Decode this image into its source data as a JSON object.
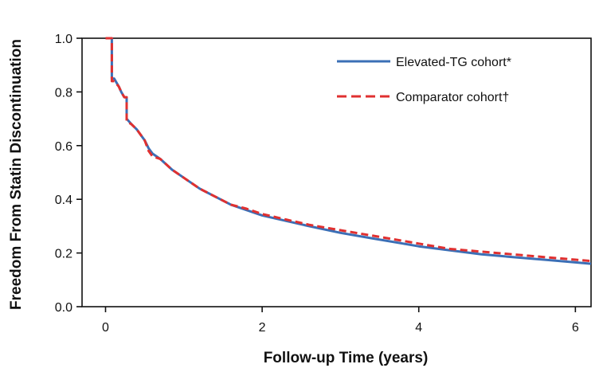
{
  "chart_data": {
    "type": "line",
    "title": "",
    "xlabel": "Follow-up Time (years)",
    "ylabel": "Freedom From Statin Discontinuation",
    "xlim": [
      -0.3,
      6.2
    ],
    "ylim": [
      0.0,
      1.0
    ],
    "x_ticks": [
      0,
      2,
      4,
      6
    ],
    "y_ticks": [
      0.0,
      0.2,
      0.4,
      0.6,
      0.8,
      1.0
    ],
    "x_tick_labels": [
      "0",
      "2",
      "4",
      "6"
    ],
    "y_tick_labels": [
      "0.0",
      "0.2",
      "0.4",
      "0.6",
      "0.8",
      "1.0"
    ],
    "grid": false,
    "legend_position": "top-right",
    "series": [
      {
        "name": "Elevated-TG cohort*",
        "color": "#3b6fb6",
        "line_style": "solid",
        "x": [
          0.0,
          0.08,
          0.08,
          0.11,
          0.17,
          0.2,
          0.24,
          0.27,
          0.27,
          0.33,
          0.4,
          0.5,
          0.55,
          0.6,
          0.7,
          0.85,
          1.0,
          1.2,
          1.4,
          1.6,
          1.8,
          2.0,
          2.3,
          2.6,
          3.0,
          3.4,
          3.8,
          4.0,
          4.4,
          4.8,
          5.2,
          5.6,
          6.0,
          6.2
        ],
        "y": [
          1.0,
          1.0,
          0.85,
          0.85,
          0.82,
          0.8,
          0.78,
          0.78,
          0.7,
          0.68,
          0.66,
          0.62,
          0.59,
          0.57,
          0.55,
          0.51,
          0.48,
          0.44,
          0.41,
          0.38,
          0.36,
          0.34,
          0.32,
          0.3,
          0.275,
          0.255,
          0.235,
          0.225,
          0.21,
          0.195,
          0.185,
          0.175,
          0.165,
          0.16
        ]
      },
      {
        "name": "Comparator cohort†",
        "color": "#e03030",
        "line_style": "dashed",
        "x": [
          0.0,
          0.08,
          0.08,
          0.11,
          0.17,
          0.2,
          0.24,
          0.27,
          0.27,
          0.33,
          0.4,
          0.5,
          0.55,
          0.6,
          0.7,
          0.85,
          1.0,
          1.2,
          1.4,
          1.6,
          1.8,
          2.0,
          2.3,
          2.6,
          3.0,
          3.4,
          3.8,
          4.0,
          4.4,
          4.8,
          5.2,
          5.6,
          6.0,
          6.2
        ],
        "y": [
          1.0,
          1.0,
          0.84,
          0.84,
          0.82,
          0.8,
          0.78,
          0.78,
          0.69,
          0.68,
          0.66,
          0.62,
          0.58,
          0.56,
          0.55,
          0.51,
          0.48,
          0.44,
          0.41,
          0.38,
          0.365,
          0.345,
          0.325,
          0.305,
          0.285,
          0.265,
          0.245,
          0.235,
          0.215,
          0.205,
          0.195,
          0.185,
          0.175,
          0.17
        ]
      }
    ]
  }
}
